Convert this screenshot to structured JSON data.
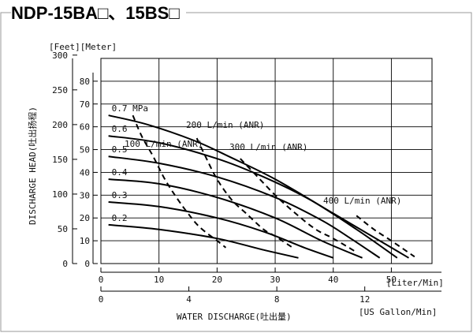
{
  "title": "NDP-15BA□、15BS□",
  "chart_data": {
    "type": "line",
    "xlabel": "WATER DISCHARGE(吐出量)",
    "ylabel": "DISCHARGE HEAD(吐出扬程)",
    "x_unit": "[Liter/Min]",
    "x2_unit": "[US Gallon/Min]",
    "y_units": "[Feet][Meter]",
    "xlim": [
      0,
      57
    ],
    "ylim": [
      0,
      90
    ],
    "x_ticks": [
      "0",
      "10",
      "20",
      "30",
      "40",
      "50"
    ],
    "x2_ticks": [
      "0",
      "4",
      "8",
      "12"
    ],
    "y_ticks_meter": [
      "0",
      "10",
      "20",
      "30",
      "40",
      "50",
      "60",
      "70",
      "80"
    ],
    "y_ticks_feet": [
      "0",
      "50",
      "100",
      "150",
      "200",
      "250",
      "300"
    ],
    "grid": true,
    "pressure_series": [
      {
        "name": "0.7 MPa",
        "points": [
          [
            1.3,
            65
          ],
          [
            8,
            61
          ],
          [
            16,
            54
          ],
          [
            22,
            47
          ],
          [
            30,
            37
          ],
          [
            40,
            22
          ],
          [
            48,
            10
          ],
          [
            53,
            2.5
          ]
        ]
      },
      {
        "name": "0.6",
        "points": [
          [
            1.3,
            56
          ],
          [
            10,
            53
          ],
          [
            20,
            46
          ],
          [
            28,
            38
          ],
          [
            36,
            28
          ],
          [
            44,
            15
          ],
          [
            51,
            2.5
          ]
        ]
      },
      {
        "name": "0.5",
        "points": [
          [
            1.3,
            47
          ],
          [
            10,
            44
          ],
          [
            20,
            38
          ],
          [
            30,
            29
          ],
          [
            38,
            19
          ],
          [
            43,
            11
          ],
          [
            48,
            2.5
          ]
        ]
      },
      {
        "name": "0.4",
        "points": [
          [
            1.3,
            37
          ],
          [
            10,
            35
          ],
          [
            20,
            29
          ],
          [
            30,
            20
          ],
          [
            38,
            10
          ],
          [
            45,
            2.5
          ]
        ]
      },
      {
        "name": "0.3",
        "points": [
          [
            1.3,
            27
          ],
          [
            10,
            25
          ],
          [
            20,
            20
          ],
          [
            28,
            14
          ],
          [
            35,
            7
          ],
          [
            40,
            2.5
          ]
        ]
      },
      {
        "name": "0.2",
        "points": [
          [
            1.3,
            17
          ],
          [
            10,
            15
          ],
          [
            20,
            11
          ],
          [
            28,
            6
          ],
          [
            34,
            2.5
          ]
        ]
      }
    ],
    "air_series": [
      {
        "name": "100 L/min (ANR)",
        "points": [
          [
            5.5,
            65
          ],
          [
            7,
            56
          ],
          [
            9,
            47
          ],
          [
            11,
            37
          ],
          [
            13,
            29
          ],
          [
            15,
            22
          ],
          [
            17,
            16
          ],
          [
            20,
            10
          ],
          [
            21.5,
            7
          ]
        ]
      },
      {
        "name": "200 L/min (ANR)",
        "points": [
          [
            16.5,
            55
          ],
          [
            18,
            47
          ],
          [
            20,
            37
          ],
          [
            22.5,
            28
          ],
          [
            25,
            22
          ],
          [
            28,
            15
          ],
          [
            30,
            12
          ],
          [
            33,
            7
          ]
        ]
      },
      {
        "name": "300 L/min (ANR)",
        "points": [
          [
            24,
            46
          ],
          [
            27,
            38
          ],
          [
            30,
            30
          ],
          [
            33.5,
            22
          ],
          [
            37,
            15
          ],
          [
            40,
            11
          ],
          [
            44,
            5
          ]
        ]
      },
      {
        "name": "400 L/min (ANR)",
        "points": [
          [
            44,
            21
          ],
          [
            47,
            15
          ],
          [
            50,
            10
          ],
          [
            54,
            3
          ]
        ]
      }
    ]
  }
}
